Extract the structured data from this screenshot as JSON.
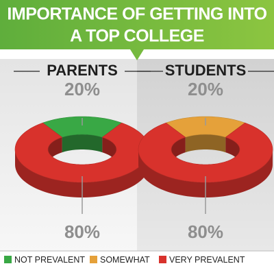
{
  "title": [
    "IMPORTANCE OF GETTING INTO",
    "A TOP COLLEGE"
  ],
  "legend": [
    {
      "name": "NOT PREVALENT",
      "color": "#39a845"
    },
    {
      "name": "SOMEWHAT",
      "color": "#e5a13a"
    },
    {
      "name": "VERY PREVALENT",
      "color": "#d8322c"
    }
  ],
  "chart_data": [
    {
      "type": "donut",
      "title": "PARENTS",
      "categories": [
        "NOT PREVALENT",
        "VERY PREVALENT"
      ],
      "values": [
        20,
        80
      ],
      "value_labels": [
        "20%",
        "80%"
      ],
      "colors": [
        "#39a845",
        "#d8322c"
      ]
    },
    {
      "type": "donut",
      "title": "STUDENTS",
      "categories": [
        "SOMEWHAT",
        "VERY PREVALENT"
      ],
      "values": [
        20,
        80
      ],
      "value_labels": [
        "20%",
        "80%"
      ],
      "colors": [
        "#e5a13a",
        "#d8322c"
      ]
    }
  ]
}
